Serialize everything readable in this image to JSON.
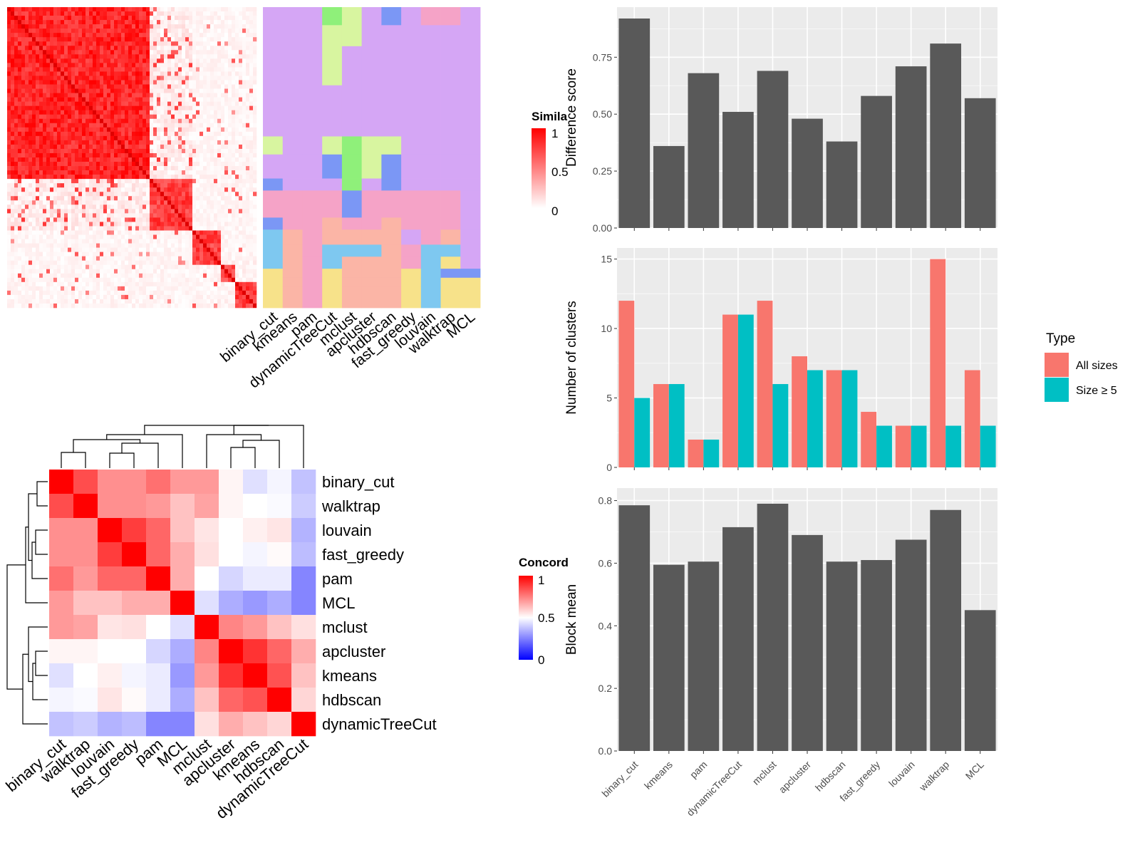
{
  "colors": {
    "panel_bg": "#ebebeb",
    "grid": "#ffffff",
    "bar": "#595959",
    "all_sizes": "#f8766d",
    "size5": "#00bfc4",
    "sim_high": "#ff0000",
    "conc_low": "#0000ff",
    "dendro": "#000000",
    "cluster_pink": "#f5a3c7",
    "cluster_purple": "#d5a6f5"
  },
  "heatmap_similarity": {
    "legend_title": "Simila",
    "legend_ticks": [
      "1",
      "0.5",
      "0"
    ],
    "column_labels": [
      "binary_cut",
      "kmeans",
      "pam",
      "dynamicTreeCut",
      "mclust",
      "apcluster",
      "hdbscan",
      "fast_greedy",
      "louvain",
      "walktrap",
      "MCL"
    ]
  },
  "heatmap_concordance": {
    "legend_title": "Concord",
    "legend_ticks": [
      "1",
      "0.5",
      "0"
    ],
    "methods": [
      "binary_cut",
      "walktrap",
      "louvain",
      "fast_greedy",
      "pam",
      "MCL",
      "mclust",
      "apcluster",
      "kmeans",
      "hdbscan",
      "dynamicTreeCut"
    ],
    "matrix": [
      [
        1.0,
        0.85,
        0.72,
        0.72,
        0.78,
        0.7,
        0.7,
        0.52,
        0.44,
        0.48,
        0.38
      ],
      [
        0.85,
        1.0,
        0.72,
        0.72,
        0.7,
        0.62,
        0.68,
        0.52,
        0.5,
        0.49,
        0.4
      ],
      [
        0.72,
        0.72,
        1.0,
        0.88,
        0.8,
        0.62,
        0.55,
        0.5,
        0.53,
        0.55,
        0.35
      ],
      [
        0.72,
        0.72,
        0.88,
        1.0,
        0.8,
        0.66,
        0.56,
        0.5,
        0.48,
        0.51,
        0.37
      ],
      [
        0.78,
        0.7,
        0.8,
        0.8,
        1.0,
        0.66,
        0.5,
        0.42,
        0.46,
        0.46,
        0.26
      ],
      [
        0.7,
        0.62,
        0.62,
        0.66,
        0.66,
        1.0,
        0.44,
        0.34,
        0.3,
        0.34,
        0.26
      ],
      [
        0.7,
        0.68,
        0.55,
        0.56,
        0.5,
        0.44,
        1.0,
        0.74,
        0.7,
        0.62,
        0.56
      ],
      [
        0.52,
        0.52,
        0.5,
        0.5,
        0.42,
        0.34,
        0.74,
        1.0,
        0.9,
        0.8,
        0.66
      ],
      [
        0.44,
        0.5,
        0.53,
        0.48,
        0.46,
        0.3,
        0.7,
        0.9,
        1.0,
        0.84,
        0.62
      ],
      [
        0.48,
        0.49,
        0.55,
        0.51,
        0.46,
        0.34,
        0.62,
        0.8,
        0.84,
        1.0,
        0.58
      ],
      [
        0.38,
        0.4,
        0.35,
        0.37,
        0.26,
        0.26,
        0.56,
        0.66,
        0.62,
        0.58,
        1.0
      ]
    ]
  },
  "chart_data": [
    {
      "type": "bar",
      "categories": [
        "binary_cut",
        "kmeans",
        "pam",
        "dynamicTreeCut",
        "mclust",
        "apcluster",
        "hdbscan",
        "fast_greedy",
        "louvain",
        "walktrap",
        "MCL"
      ],
      "values": [
        0.92,
        0.36,
        0.68,
        0.51,
        0.69,
        0.48,
        0.38,
        0.58,
        0.71,
        0.81,
        0.57
      ],
      "ylabel": "Difference score",
      "yticks": [
        "0.00",
        "0.25",
        "0.50",
        "0.75"
      ],
      "ylim": [
        0,
        0.97
      ]
    },
    {
      "type": "bar",
      "categories": [
        "binary_cut",
        "kmeans",
        "pam",
        "dynamicTreeCut",
        "mclust",
        "apcluster",
        "hdbscan",
        "fast_greedy",
        "louvain",
        "walktrap",
        "MCL"
      ],
      "series": [
        {
          "name": "All sizes",
          "values": [
            12,
            6,
            2,
            11,
            12,
            8,
            7,
            4,
            3,
            15,
            7
          ]
        },
        {
          "name": "Size ≥ 5",
          "values": [
            5,
            6,
            2,
            11,
            6,
            7,
            7,
            3,
            3,
            3,
            3
          ]
        }
      ],
      "ylabel": "Number of clusters",
      "yticks": [
        "0",
        "5",
        "10",
        "15"
      ],
      "ylim": [
        0,
        15.8
      ],
      "legend_title": "Type",
      "legend_position": "right"
    },
    {
      "type": "bar",
      "categories": [
        "binary_cut",
        "kmeans",
        "pam",
        "dynamicTreeCut",
        "mclust",
        "apcluster",
        "hdbscan",
        "fast_greedy",
        "louvain",
        "walktrap",
        "MCL"
      ],
      "values": [
        0.785,
        0.595,
        0.605,
        0.715,
        0.79,
        0.69,
        0.605,
        0.61,
        0.675,
        0.77,
        0.45
      ],
      "ylabel": "Block mean",
      "yticks": [
        "0.0",
        "0.2",
        "0.4",
        "0.6",
        "0.8"
      ],
      "ylim": [
        0,
        0.84
      ]
    }
  ]
}
